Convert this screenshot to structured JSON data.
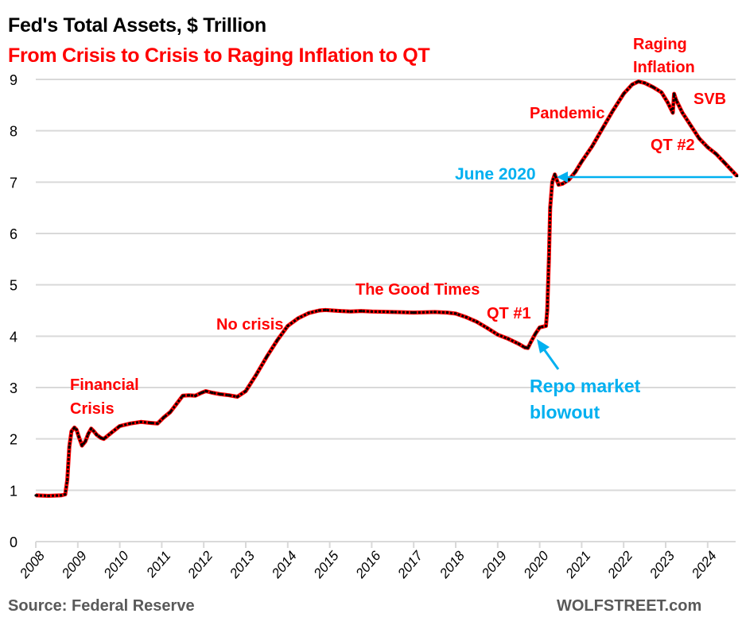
{
  "header": {
    "title": "Fed's Total Assets, $ Trillion",
    "subtitle": "From Crisis to Crisis to Raging Inflation to QT"
  },
  "footer": {
    "source": "Source: Federal Reserve",
    "brand": "WOLFSTREET.com"
  },
  "colors": {
    "line_outer": "#ff0000",
    "line_inner": "#000000",
    "annotation_red": "#ff0000",
    "annotation_blue": "#00b0f0",
    "grid": "#d9d9d9",
    "footer_text": "#595959"
  },
  "chart_data": {
    "type": "line",
    "title": "Fed's Total Assets, $ Trillion",
    "subtitle": "From Crisis to Crisis to Raging Inflation to QT",
    "xlabel": "",
    "ylabel": "",
    "xlim": [
      2008,
      2024.7
    ],
    "ylim": [
      0,
      9
    ],
    "yticks": [
      0,
      1,
      2,
      3,
      4,
      5,
      6,
      7,
      8,
      9
    ],
    "xticks": [
      "2008",
      "2009",
      "2010",
      "2011",
      "2012",
      "2013",
      "2014",
      "2015",
      "2016",
      "2017",
      "2018",
      "2019",
      "2020",
      "2021",
      "2022",
      "2023",
      "2024"
    ],
    "grid": "horizontal",
    "legend": "none",
    "series": [
      {
        "name": "Fed's Total Assets",
        "x": [
          2008.0,
          2008.3,
          2008.6,
          2008.7,
          2008.75,
          2008.8,
          2008.85,
          2008.92,
          2008.97,
          2009.02,
          2009.1,
          2009.18,
          2009.25,
          2009.32,
          2009.38,
          2009.45,
          2009.55,
          2009.62,
          2009.8,
          2010.0,
          2010.25,
          2010.5,
          2010.75,
          2010.9,
          2011.05,
          2011.2,
          2011.35,
          2011.5,
          2011.65,
          2011.8,
          2011.95,
          2012.05,
          2012.2,
          2012.4,
          2012.6,
          2012.8,
          2013.0,
          2013.25,
          2013.5,
          2013.75,
          2014.0,
          2014.25,
          2014.5,
          2014.75,
          2014.9,
          2015.25,
          2015.5,
          2015.75,
          2016.0,
          2016.5,
          2017.0,
          2017.5,
          2017.8,
          2018.0,
          2018.25,
          2018.5,
          2018.75,
          2019.0,
          2019.25,
          2019.5,
          2019.65,
          2019.72,
          2019.78,
          2019.9,
          2020.0,
          2020.15,
          2020.18,
          2020.22,
          2020.25,
          2020.3,
          2020.36,
          2020.45,
          2020.55,
          2020.7,
          2020.85,
          2021.0,
          2021.25,
          2021.5,
          2021.75,
          2022.0,
          2022.2,
          2022.35,
          2022.5,
          2022.7,
          2022.9,
          2023.05,
          2023.17,
          2023.2,
          2023.25,
          2023.4,
          2023.6,
          2023.8,
          2024.0,
          2024.2,
          2024.4,
          2024.55,
          2024.7
        ],
        "values": [
          0.9,
          0.89,
          0.9,
          0.92,
          1.2,
          1.85,
          2.15,
          2.22,
          2.18,
          2.05,
          1.87,
          1.95,
          2.1,
          2.2,
          2.15,
          2.08,
          2.02,
          2.0,
          2.12,
          2.25,
          2.3,
          2.33,
          2.31,
          2.3,
          2.42,
          2.52,
          2.68,
          2.84,
          2.85,
          2.84,
          2.9,
          2.93,
          2.9,
          2.87,
          2.85,
          2.82,
          2.93,
          3.25,
          3.6,
          3.92,
          4.2,
          4.35,
          4.45,
          4.5,
          4.51,
          4.49,
          4.48,
          4.49,
          4.48,
          4.47,
          4.46,
          4.47,
          4.46,
          4.44,
          4.37,
          4.28,
          4.16,
          4.03,
          3.95,
          3.85,
          3.78,
          3.77,
          3.87,
          4.05,
          4.17,
          4.2,
          4.5,
          5.5,
          6.5,
          7.0,
          7.15,
          6.95,
          6.97,
          7.05,
          7.2,
          7.4,
          7.7,
          8.05,
          8.4,
          8.72,
          8.9,
          8.96,
          8.93,
          8.85,
          8.75,
          8.55,
          8.35,
          8.72,
          8.6,
          8.35,
          8.1,
          7.85,
          7.68,
          7.55,
          7.38,
          7.25,
          7.12
        ]
      }
    ],
    "annotations": [
      {
        "text": "Financial Crisis",
        "color": "red"
      },
      {
        "text": "No crisis",
        "color": "red"
      },
      {
        "text": "The Good Times",
        "color": "red"
      },
      {
        "text": "QT #1",
        "color": "red"
      },
      {
        "text": "Pandemic",
        "color": "red"
      },
      {
        "text": "Raging Inflation",
        "color": "red"
      },
      {
        "text": "SVB",
        "color": "red"
      },
      {
        "text": "QT #2",
        "color": "red"
      },
      {
        "text": "June 2020",
        "color": "blue",
        "reference_value": 7.1
      },
      {
        "text": "Repo market blowout",
        "color": "blue"
      }
    ]
  },
  "labels": {
    "financial_crisis_1": "Financial",
    "financial_crisis_2": "Crisis",
    "no_crisis": "No crisis",
    "good_times": "The Good Times",
    "qt1": "QT #1",
    "pandemic": "Pandemic",
    "raging_1": "Raging",
    "raging_2": "Inflation",
    "svb": "SVB",
    "qt2": "QT #2",
    "june2020": "June 2020",
    "repo_1": "Repo market",
    "repo_2": "blowout"
  }
}
